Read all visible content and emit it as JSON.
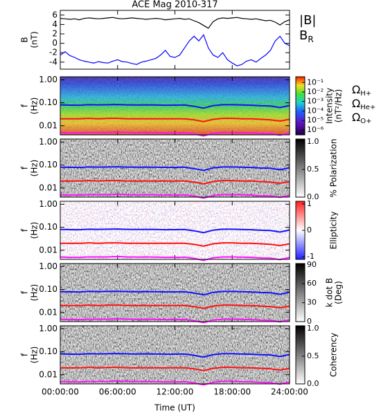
{
  "chart_data": [
    {
      "type": "line",
      "title": "ACE Mag 2010-317",
      "y_label": [
        "B",
        "(nT)"
      ],
      "x": [
        0,
        0.5,
        1,
        1.5,
        2,
        2.5,
        3,
        3.5,
        4,
        4.5,
        5,
        5.5,
        6,
        6.5,
        7,
        7.5,
        8,
        8.5,
        9,
        9.5,
        10,
        10.5,
        11,
        11.5,
        12,
        12.5,
        13,
        13.5,
        14,
        14.5,
        15,
        15.5,
        16,
        16.5,
        17,
        17.5,
        18,
        18.5,
        19,
        19.5,
        20,
        20.5,
        21,
        21.5,
        22,
        22.5,
        23,
        23.5,
        24
      ],
      "ylim": [
        -5.5,
        7
      ],
      "yticks": [
        -4,
        -2,
        0,
        2,
        4,
        6
      ],
      "series": [
        {
          "name": "|B|",
          "color": "#000000",
          "values": [
            5.3,
            5.2,
            5.1,
            5.2,
            5.0,
            5.3,
            5.4,
            5.3,
            5.2,
            5.3,
            5.4,
            5.5,
            5.3,
            5.2,
            5.3,
            5.4,
            5.3,
            5.2,
            5.1,
            5.2,
            5.3,
            5.2,
            5.0,
            5.1,
            5.2,
            5.3,
            5.1,
            5.2,
            4.8,
            4.4,
            3.8,
            3.2,
            4.6,
            5.2,
            5.4,
            5.3,
            5.4,
            5.5,
            5.3,
            5.2,
            5.1,
            5.2,
            5.0,
            4.8,
            4.9,
            4.5,
            3.9,
            4.6,
            5.0
          ]
        },
        {
          "name": "B",
          "subscript": "R",
          "color": "#0000ff",
          "values": [
            -2.5,
            -1.8,
            -2.6,
            -3.0,
            -3.5,
            -3.8,
            -4.0,
            -4.2,
            -3.9,
            -4.1,
            -4.2,
            -3.8,
            -3.5,
            -3.9,
            -4.0,
            -4.3,
            -4.5,
            -4.0,
            -3.8,
            -3.5,
            -3.2,
            -2.5,
            -1.5,
            -2.8,
            -3.0,
            -2.5,
            -1.0,
            0.5,
            1.5,
            0.5,
            1.8,
            -1.0,
            -2.5,
            -3.0,
            -2.0,
            -3.5,
            -4.2,
            -4.8,
            -4.5,
            -3.8,
            -3.5,
            -4.0,
            -3.2,
            -2.5,
            -1.5,
            0.5,
            1.5,
            0.0,
            -0.5
          ]
        }
      ]
    },
    {
      "type": "spectrogram",
      "texture": "intensity",
      "y_label": [
        "f",
        "(Hz)"
      ],
      "log_y": true,
      "ylim": [
        0.004,
        1.35
      ],
      "yticks": [
        {
          "value": 0.01,
          "label": "0.01"
        },
        {
          "value": 0.1,
          "label": "0.10"
        },
        {
          "value": 1,
          "label": "1.00"
        }
      ],
      "x": [
        0,
        1,
        2,
        3,
        4,
        5,
        6,
        7,
        8,
        9,
        10,
        11,
        12,
        13,
        14,
        15,
        16,
        17,
        18,
        19,
        20,
        21,
        22,
        23,
        24
      ],
      "series": [
        {
          "name": "Ω",
          "subscript": "H+",
          "color": "#1010ff",
          "values": [
            0.081,
            0.079,
            0.078,
            0.082,
            0.081,
            0.082,
            0.084,
            0.081,
            0.08,
            0.081,
            0.08,
            0.078,
            0.079,
            0.08,
            0.07,
            0.058,
            0.075,
            0.082,
            0.082,
            0.08,
            0.078,
            0.074,
            0.072,
            0.062,
            0.076
          ]
        },
        {
          "name": "Ω",
          "subscript": "He+",
          "color": "#ff1010",
          "values": [
            0.02,
            0.02,
            0.02,
            0.021,
            0.02,
            0.021,
            0.021,
            0.02,
            0.02,
            0.02,
            0.02,
            0.02,
            0.02,
            0.02,
            0.018,
            0.015,
            0.019,
            0.021,
            0.021,
            0.02,
            0.02,
            0.019,
            0.018,
            0.016,
            0.019
          ]
        },
        {
          "name": "Ω",
          "subscript": "O+",
          "color": "#ff10ff",
          "values": [
            0.0051,
            0.0049,
            0.0049,
            0.0051,
            0.0051,
            0.0051,
            0.0053,
            0.0051,
            0.005,
            0.0051,
            0.005,
            0.0049,
            0.0049,
            0.005,
            0.0044,
            0.0036,
            0.0047,
            0.0051,
            0.0051,
            0.005,
            0.0049,
            0.0046,
            0.0045,
            0.0039,
            0.0048
          ]
        }
      ],
      "colorbar": {
        "label": [
          "Intensity",
          "(nT²/Hz)"
        ],
        "log": true,
        "lim": [
          3e-07,
          0.4
        ],
        "ticks": [
          {
            "value": 0.1,
            "label": "10⁻¹"
          },
          {
            "value": 0.01,
            "label": "10⁻²"
          },
          {
            "value": 0.001,
            "label": "10⁻³"
          },
          {
            "value": 0.0001,
            "label": "10⁻⁴"
          },
          {
            "value": 1e-05,
            "label": "10⁻⁵"
          },
          {
            "value": 1e-06,
            "label": "10⁻⁶"
          }
        ]
      }
    },
    {
      "type": "spectrogram",
      "texture": "gray",
      "y_label": [
        "f",
        "(Hz)"
      ],
      "log_y": true,
      "ylim": [
        0.004,
        1.35
      ],
      "yticks": [
        {
          "value": 0.01,
          "label": "0.01"
        },
        {
          "value": 0.1,
          "label": "0.10"
        },
        {
          "value": 1,
          "label": "1.00"
        }
      ],
      "colorbar": {
        "label": [
          "% Polarization"
        ],
        "lim": [
          0,
          1.05
        ],
        "ticks": [
          {
            "value": 0,
            "label": "0.0"
          },
          {
            "value": 0.5,
            "label": "0.5"
          },
          {
            "value": 1,
            "label": "1.0"
          }
        ]
      }
    },
    {
      "type": "spectrogram",
      "texture": "ellipticity",
      "y_label": [
        "f",
        "(Hz)"
      ],
      "log_y": true,
      "ylim": [
        0.004,
        1.35
      ],
      "yticks": [
        {
          "value": 0.01,
          "label": "0.01"
        },
        {
          "value": 0.1,
          "label": "0.10"
        },
        {
          "value": 1,
          "label": "1.00"
        }
      ],
      "colorbar": {
        "label": [
          "Ellipticity"
        ],
        "lim": [
          -1.1,
          1.1
        ],
        "ticks": [
          -1,
          0,
          1
        ]
      }
    },
    {
      "type": "spectrogram",
      "texture": "gray",
      "y_label": [
        "f",
        "(Hz)"
      ],
      "log_y": true,
      "ylim": [
        0.004,
        1.35
      ],
      "yticks": [
        {
          "value": 0.01,
          "label": "0.01"
        },
        {
          "value": 0.1,
          "label": "0.10"
        },
        {
          "value": 1,
          "label": "1.00"
        }
      ],
      "colorbar": {
        "label": [
          "k dot B",
          "(Deg)"
        ],
        "lim": [
          0,
          92
        ],
        "ticks": [
          0,
          30,
          60,
          90
        ]
      }
    },
    {
      "type": "spectrogram",
      "texture": "gray",
      "y_label": [
        "f",
        "(Hz)"
      ],
      "log_y": true,
      "ylim": [
        0.004,
        1.35
      ],
      "yticks": [
        {
          "value": 0.01,
          "label": "0.01"
        },
        {
          "value": 0.1,
          "label": "0.10"
        },
        {
          "value": 1,
          "label": "1.00"
        }
      ],
      "colorbar": {
        "label": [
          "Coherency"
        ],
        "lim": [
          0,
          1.05
        ],
        "ticks": [
          {
            "value": 0,
            "label": "0.0"
          },
          {
            "value": 0.5,
            "label": "0.5"
          },
          {
            "value": 1,
            "label": "1.0"
          }
        ]
      },
      "x_label": "Time (UT)",
      "xlim": [
        0,
        24
      ],
      "xticks": [
        {
          "value": 0,
          "label": "00:00:00"
        },
        {
          "value": 6,
          "label": "06:00:00"
        },
        {
          "value": 12,
          "label": "12:00:00"
        },
        {
          "value": 18,
          "label": "18:00:00"
        },
        {
          "value": 24,
          "label": "24:00:00"
        }
      ]
    }
  ]
}
